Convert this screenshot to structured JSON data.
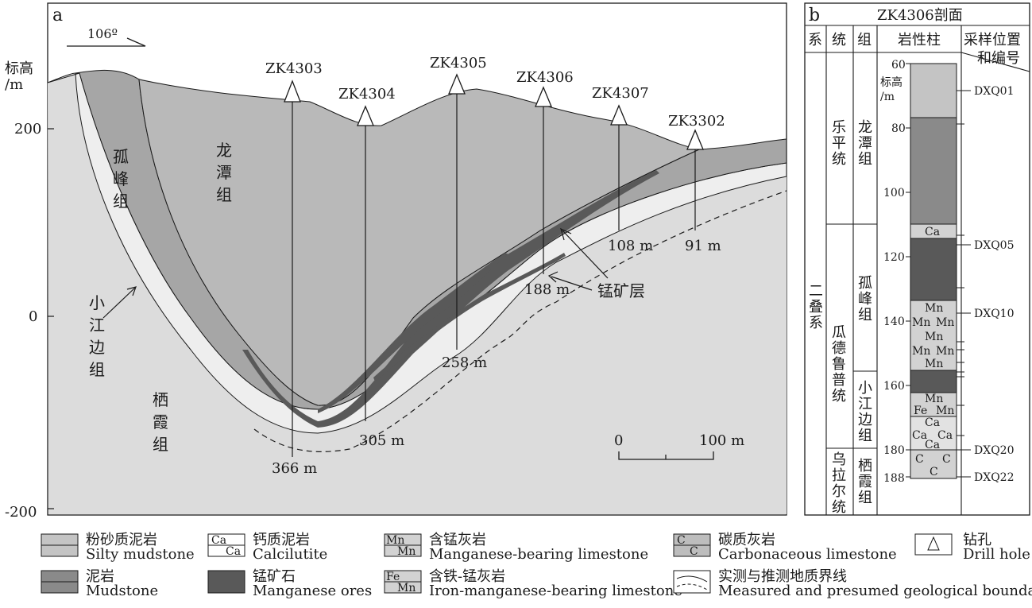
{
  "panel_a": {
    "label": "a",
    "orientation": "106º",
    "elevation_label_line1": "标高",
    "elevation_label_line2": "/m",
    "y_ticks": [
      "200",
      "0",
      "-200"
    ],
    "drillholes": [
      {
        "name": "ZK4303",
        "depth": "366 m"
      },
      {
        "name": "ZK4304",
        "depth": "305 m"
      },
      {
        "name": "ZK4305",
        "depth": "258 m"
      },
      {
        "name": "ZK4306",
        "depth": "188 m"
      },
      {
        "name": "ZK4307",
        "depth": "108 m"
      },
      {
        "name": "ZK3302",
        "depth": "91 m"
      }
    ],
    "formations": {
      "longtan": [
        "龙",
        "潭",
        "组"
      ],
      "gufeng": [
        "孤",
        "峰",
        "组"
      ],
      "xiaojiangbian": [
        "小",
        "江",
        "边",
        "组"
      ],
      "qixia": [
        "栖",
        "霞",
        "组"
      ]
    },
    "ore_layer_label": "锰矿层",
    "scale_start": "0",
    "scale_end": "100 m"
  },
  "panel_b": {
    "label": "b",
    "title": "ZK4306剖面",
    "headers": {
      "system": "系",
      "series": "统",
      "formation": "组",
      "lithology": "岩性柱",
      "sample_line1": "采样位置",
      "sample_line2": "和编号"
    },
    "system_name": [
      "二",
      "叠",
      "系"
    ],
    "series_names": {
      "leping": [
        "乐",
        "平",
        "统"
      ],
      "guadalupian": [
        "瓜",
        "德",
        "鲁",
        "普",
        "统"
      ],
      "cisuralian": [
        "乌",
        "拉",
        "尔",
        "统"
      ]
    },
    "formation_names": {
      "longtan": [
        "龙",
        "潭",
        "组"
      ],
      "gufeng": [
        "孤",
        "峰",
        "组"
      ],
      "xiaojiangbian": [
        "小",
        "江",
        "边",
        "组"
      ],
      "qixia": [
        "栖",
        "霞",
        "组"
      ]
    },
    "depth_ticks": [
      "60",
      "80",
      "100",
      "120",
      "140",
      "160",
      "180",
      "188"
    ],
    "elev_label_line1": "标高",
    "elev_label_line2": "/m",
    "samples": [
      "DXQ01",
      "DXQ05",
      "DXQ10",
      "DXQ20",
      "DXQ22"
    ],
    "column_symbols": {
      "ca": "Ca",
      "mn": "Mn",
      "fe": "Fe",
      "c": "C"
    }
  },
  "legend": [
    {
      "zh": "粉砂质泥岩",
      "en": "Silty mudstone",
      "symbol": "silty-mudstone"
    },
    {
      "zh": "钙质泥岩",
      "en": "Calcilutite",
      "symbol": "calcilutite"
    },
    {
      "zh": "含锰灰岩",
      "en": "Manganese-bearing limestone",
      "symbol": "mn-limestone"
    },
    {
      "zh": "碳质灰岩",
      "en": "Carbonaceous limestone",
      "symbol": "c-limestone"
    },
    {
      "zh": "钻孔",
      "en": "Drill hole",
      "symbol": "drill-hole"
    },
    {
      "zh": "泥岩",
      "en": "Mudstone",
      "symbol": "mudstone"
    },
    {
      "zh": "锰矿石",
      "en": "Manganese ores",
      "symbol": "mn-ore"
    },
    {
      "zh": "含铁-锰灰岩",
      "en": "Iron-manganese-bearing limestone",
      "symbol": "fe-mn-limestone"
    },
    {
      "zh": "实测与推测地质界线",
      "en": "Measured and presumed geological boundaries",
      "symbol": "boundaries"
    }
  ],
  "colors": {
    "qixia": "#dcdcdc",
    "xiaojiangbian": "#eeeeee",
    "gufeng": "#a6a6a6",
    "longtan": "#b9b9b9",
    "ore": "#595959",
    "mudstone_col": "#8a8a8a",
    "silty_col": "#c4c4c4",
    "limestone_col": "#d2d2d2"
  }
}
